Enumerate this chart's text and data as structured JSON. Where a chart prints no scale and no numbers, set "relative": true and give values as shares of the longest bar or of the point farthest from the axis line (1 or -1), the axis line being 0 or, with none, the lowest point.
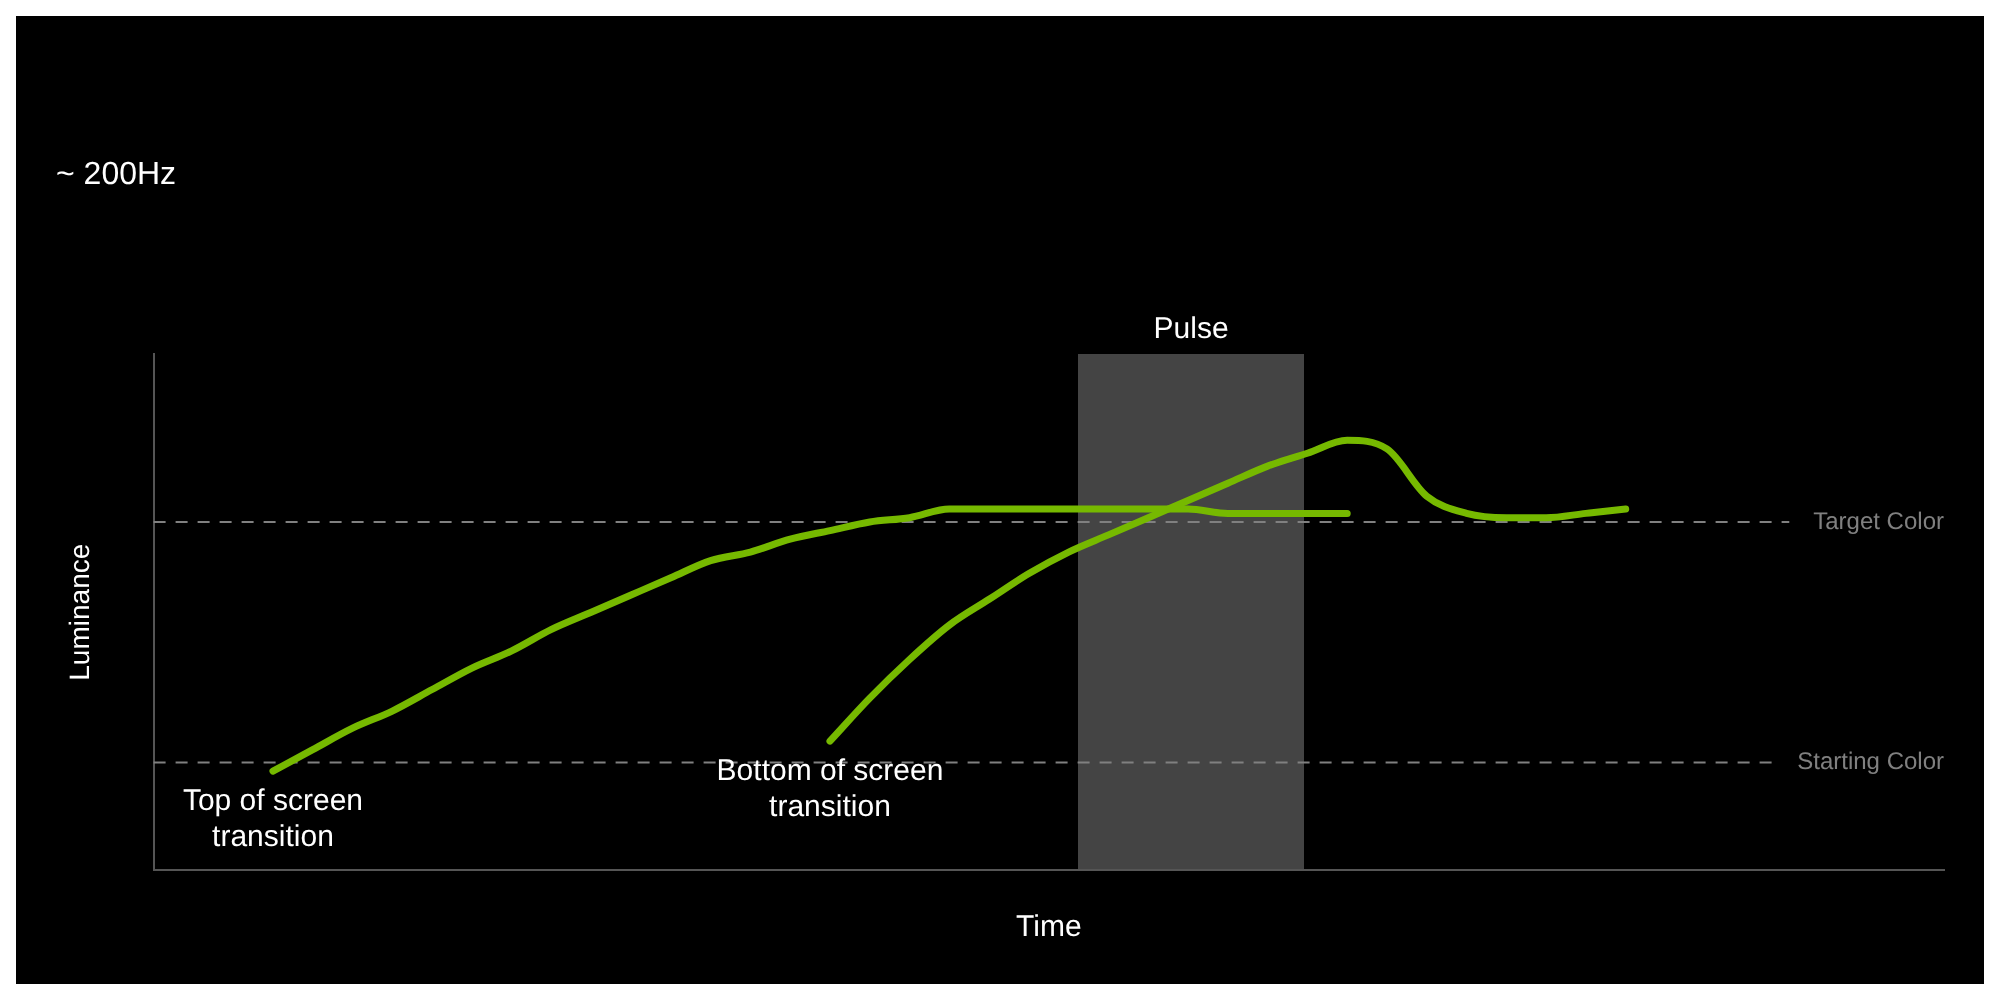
{
  "chart_data": {
    "type": "line",
    "title": "~ 200Hz",
    "xlabel": "Time",
    "ylabel": "Luminance",
    "relative": true,
    "legend": false,
    "categories": [
      null,
      null,
      null,
      null,
      null,
      null,
      null,
      null,
      null,
      null,
      null,
      null,
      null,
      null,
      null,
      null,
      null,
      null,
      null,
      null,
      null,
      null,
      null,
      null,
      null,
      null,
      null,
      null,
      null,
      null,
      null,
      null,
      null,
      null,
      null,
      null,
      null,
      null,
      null,
      null,
      null,
      null,
      null,
      null,
      null,
      null
    ],
    "series": [
      {
        "color": "#76b900",
        "values": [
          null,
          null,
          null,
          0.23,
          0.28,
          0.33,
          0.37,
          0.42,
          0.47,
          0.51,
          0.56,
          0.6,
          0.64,
          0.68,
          0.72,
          0.74,
          0.77,
          0.79,
          0.81,
          0.82,
          0.84,
          0.84,
          0.84,
          0.84,
          0.84,
          0.84,
          0.84,
          0.83,
          0.83,
          0.83,
          0.83,
          null,
          null,
          null,
          null,
          null,
          null,
          null,
          null,
          null,
          null,
          null,
          null,
          null,
          null,
          null
        ]
      },
      {
        "color": "#76b900",
        "values": [
          null,
          null,
          null,
          null,
          null,
          null,
          null,
          null,
          null,
          null,
          null,
          null,
          null,
          null,
          null,
          null,
          null,
          0.3,
          0.4,
          0.49,
          0.57,
          0.63,
          0.69,
          0.74,
          0.78,
          0.82,
          0.86,
          0.9,
          0.94,
          0.97,
          1,
          0.98,
          0.87,
          0.83,
          0.82,
          0.82,
          0.83,
          0.84,
          null,
          null,
          null,
          null,
          null,
          null,
          null,
          null
        ]
      }
    ],
    "ref_lines": [
      {
        "axis": "y",
        "value": 0.81,
        "label": "Target Color",
        "color": "#808080",
        "line_style": "dashed"
      },
      {
        "axis": "y",
        "value": 0.25,
        "label": "Starting Color",
        "color": "#808080",
        "line_style": "dashed"
      }
    ],
    "annotations": [
      "Top of screen transition",
      "Bottom of screen transition",
      "Pulse"
    ]
  }
}
